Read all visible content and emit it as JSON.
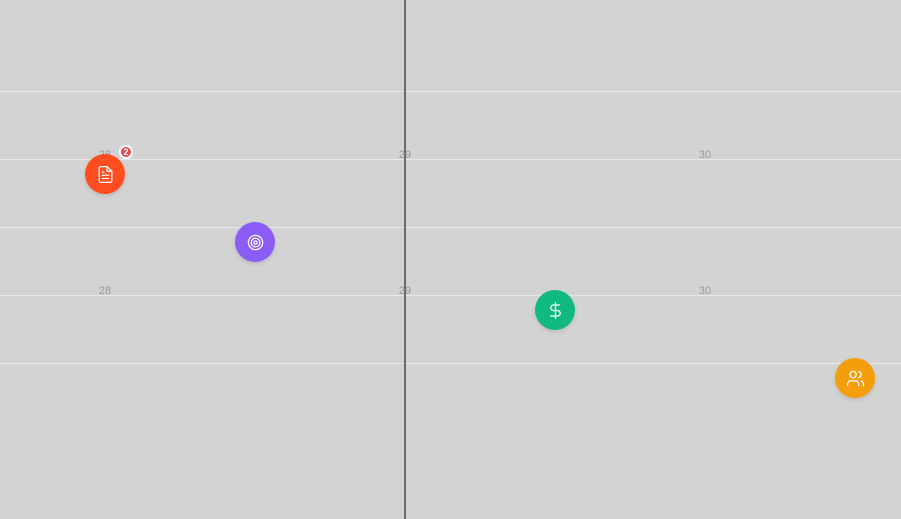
{
  "timeline": {
    "rows": [
      {
        "days": [
          "28",
          "29",
          "30"
        ]
      },
      {
        "days": [
          "28",
          "29",
          "30"
        ]
      }
    ]
  },
  "markers": [
    {
      "id": "document",
      "icon": "document-icon",
      "color": "#ff4d1f",
      "badge": "2"
    },
    {
      "id": "target",
      "icon": "target-icon",
      "color": "#8b5cf6"
    },
    {
      "id": "dollar",
      "icon": "dollar-icon",
      "color": "#10b981"
    },
    {
      "id": "users",
      "icon": "users-icon",
      "color": "#f59e0b"
    }
  ]
}
